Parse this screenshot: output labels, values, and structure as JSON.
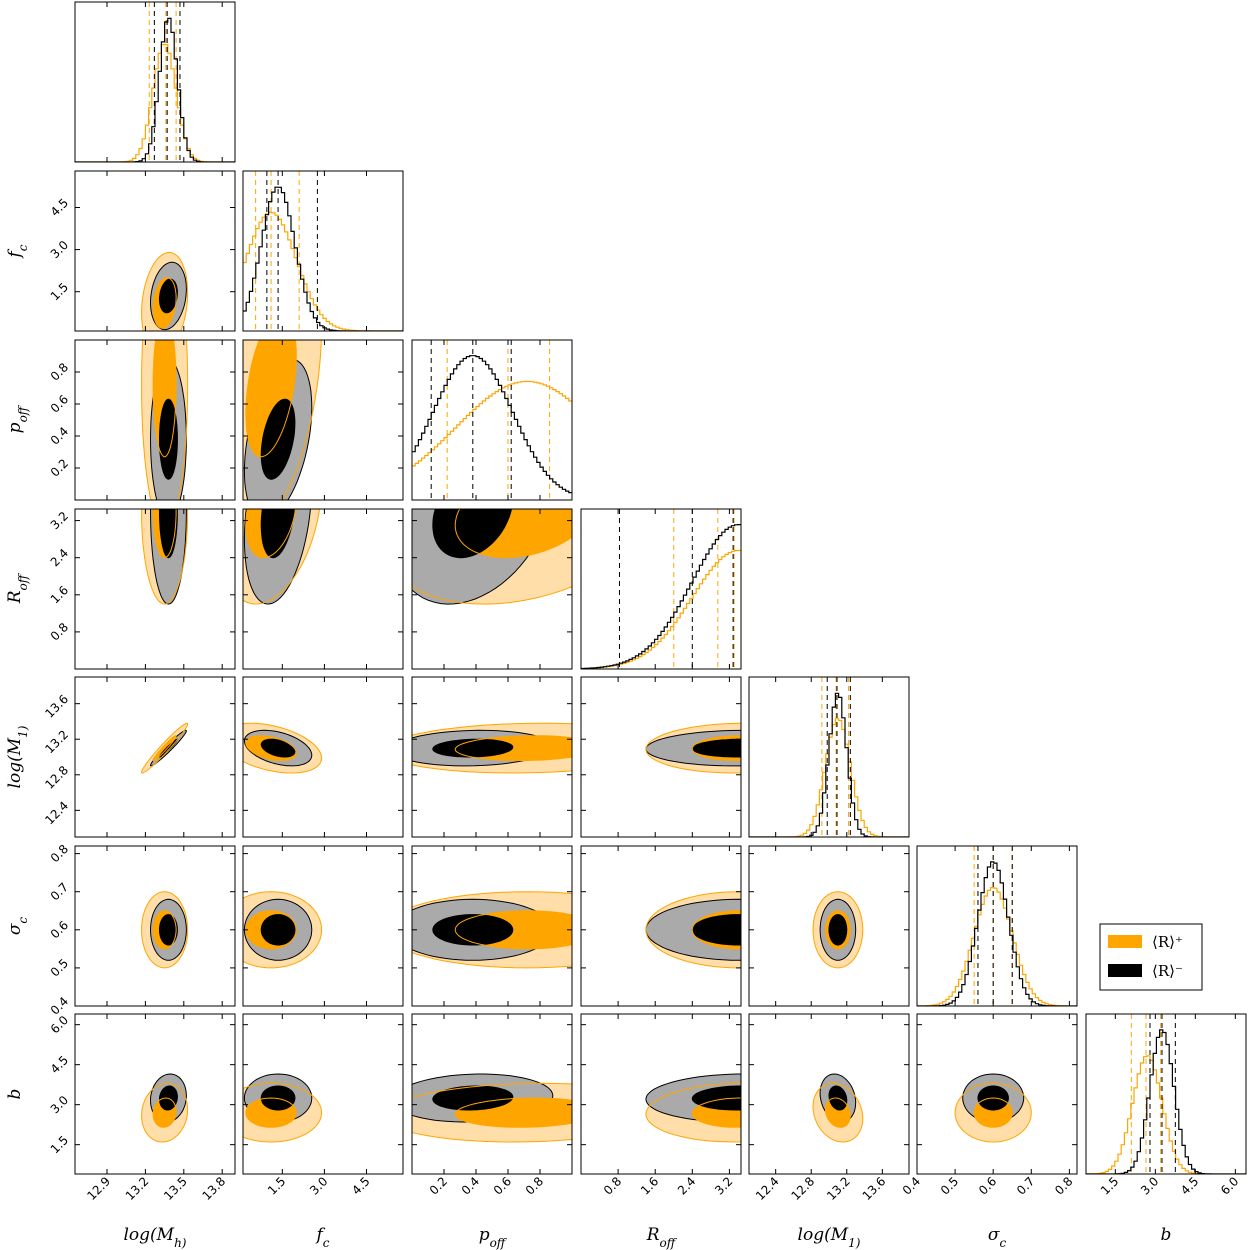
{
  "chart_data": {
    "type": "corner",
    "parameters": [
      {
        "label": "log(M_h)",
        "ticks": [
          12.9,
          13.2,
          13.5,
          13.8
        ],
        "tick_labels": [
          "12.9",
          "13.2",
          "13.5",
          "13.8"
        ],
        "range": [
          12.65,
          13.9
        ]
      },
      {
        "label": "f_c",
        "ticks": [
          1.5,
          3.0,
          4.5
        ],
        "tick_labels": [
          "1.5",
          "3.0",
          "4.5"
        ],
        "range": [
          0.1,
          5.8
        ]
      },
      {
        "label": "p_off",
        "ticks": [
          0.2,
          0.4,
          0.6,
          0.8
        ],
        "tick_labels": [
          "0.2",
          "0.4",
          "0.6",
          "0.8"
        ],
        "range": [
          0.0,
          1.0
        ]
      },
      {
        "label": "R_off",
        "ticks": [
          0.8,
          1.6,
          2.4,
          3.2
        ],
        "tick_labels": [
          "0.8",
          "1.6",
          "2.4",
          "3.2"
        ],
        "range": [
          0.0,
          3.45
        ]
      },
      {
        "label": "log(M_1)",
        "ticks": [
          12.4,
          12.8,
          13.2,
          13.6
        ],
        "tick_labels": [
          "12.4",
          "12.8",
          "13.2",
          "13.6"
        ],
        "range": [
          12.1,
          13.9
        ]
      },
      {
        "label": "σ_c",
        "ticks": [
          0.4,
          0.5,
          0.6,
          0.7,
          0.8
        ],
        "tick_labels": [
          "0.4",
          "0.5",
          "0.6",
          "0.7",
          "0.8"
        ],
        "range": [
          0.4,
          0.82
        ]
      },
      {
        "label": "b",
        "ticks": [
          1.5,
          3.0,
          4.5,
          6.0
        ],
        "tick_labels": [
          "1.5",
          "3.0",
          "4.5",
          "6.0"
        ],
        "range": [
          0.4,
          6.4
        ]
      }
    ],
    "series": [
      {
        "name": "⟨R⟩⁺",
        "color": "#FFA500",
        "light_color": "#FFDEAA",
        "mean": [
          13.35,
          1.1,
          0.72,
          3.4,
          13.1,
          0.6,
          2.7
        ],
        "std": [
          0.09,
          0.9,
          0.45,
          1.0,
          0.14,
          0.05,
          0.55
        ],
        "quantiles": [
          [
            13.23,
            13.36,
            13.44
          ],
          [
            0.55,
            1.1,
            2.1
          ],
          [
            0.22,
            0.6,
            0.86
          ],
          [
            2.0,
            2.95,
            3.3
          ],
          [
            12.92,
            13.08,
            13.22
          ],
          [
            0.55,
            0.6,
            0.65
          ],
          [
            2.1,
            2.65,
            3.2
          ]
        ]
      },
      {
        "name": "⟨R⟩⁻",
        "color": "#000000",
        "light_color": "#AAAAAA",
        "mean": [
          13.38,
          1.35,
          0.38,
          3.4,
          13.1,
          0.6,
          3.25
        ],
        "std": [
          0.07,
          0.6,
          0.25,
          1.0,
          0.1,
          0.04,
          0.45
        ],
        "quantiles": [
          [
            13.27,
            13.37,
            13.47
          ],
          [
            0.95,
            1.35,
            2.75
          ],
          [
            0.12,
            0.38,
            0.62
          ],
          [
            0.83,
            2.4,
            3.28
          ],
          [
            12.98,
            13.09,
            13.24
          ],
          [
            0.56,
            0.6,
            0.65
          ],
          [
            2.8,
            3.25,
            3.75
          ]
        ]
      }
    ],
    "correlations": [
      [
        1,
        0.2,
        0.0,
        0.0,
        0.97,
        0.0,
        0.1
      ],
      [
        0.2,
        1,
        0.4,
        0.3,
        -0.4,
        0.0,
        0.0
      ],
      [
        0.0,
        0.4,
        1,
        0.3,
        0.1,
        0.0,
        0.1
      ],
      [
        0.0,
        0.3,
        0.3,
        1,
        0.05,
        0.0,
        0.05
      ],
      [
        0.97,
        -0.4,
        0.1,
        0.05,
        1,
        0.0,
        -0.2
      ],
      [
        0.0,
        0.0,
        0.0,
        0.0,
        0.0,
        1,
        0.0
      ],
      [
        0.1,
        0.0,
        0.1,
        0.05,
        -0.2,
        0.0,
        1
      ]
    ],
    "legend": {
      "placement": "right",
      "entries": [
        "⟨R⟩⁺",
        "⟨R⟩⁻"
      ]
    }
  }
}
